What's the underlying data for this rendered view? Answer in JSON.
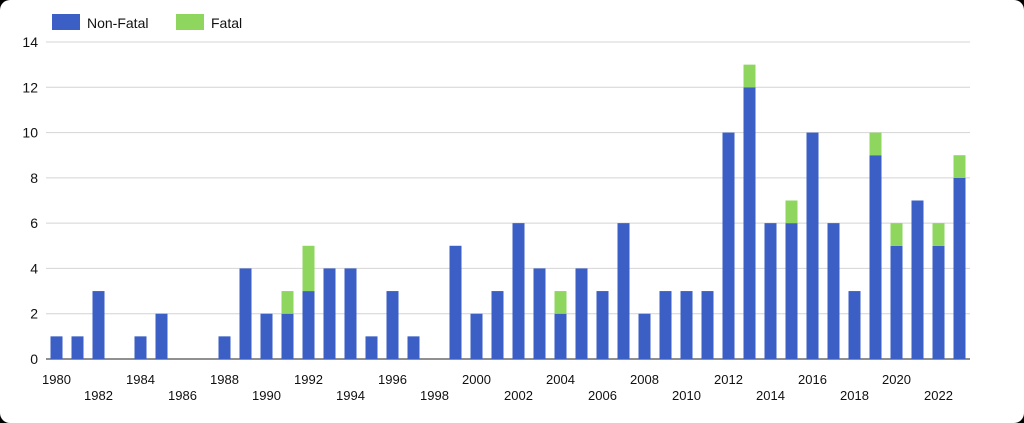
{
  "chart_data": {
    "type": "bar",
    "stacked": true,
    "title": "",
    "xlabel": "",
    "ylabel": "",
    "ylim": [
      0,
      14
    ],
    "yticks": [
      0,
      2,
      4,
      6,
      8,
      10,
      12,
      14
    ],
    "grid": true,
    "legend_position": "top-left",
    "categories": [
      "1980",
      "1981",
      "1982",
      "1983",
      "1984",
      "1985",
      "1986",
      "1987",
      "1988",
      "1989",
      "1990",
      "1991",
      "1992",
      "1993",
      "1994",
      "1995",
      "1996",
      "1997",
      "1998",
      "1999",
      "2000",
      "2001",
      "2002",
      "2003",
      "2004",
      "2005",
      "2006",
      "2007",
      "2008",
      "2009",
      "2010",
      "2011",
      "2012",
      "2013",
      "2014",
      "2015",
      "2016",
      "2017",
      "2018",
      "2019",
      "2020",
      "2021",
      "2022",
      "2023"
    ],
    "x_tick_labels": [
      "1980",
      "1982",
      "1984",
      "1986",
      "1988",
      "1990",
      "1992",
      "1994",
      "1996",
      "1998",
      "2000",
      "2002",
      "2004",
      "2006",
      "2008",
      "2010",
      "2012",
      "2014",
      "2016",
      "2018",
      "2020",
      "2022"
    ],
    "series": [
      {
        "name": "Non-Fatal",
        "color": "#3b5fc4",
        "values": [
          1,
          1,
          3,
          0,
          1,
          2,
          0,
          0,
          1,
          4,
          2,
          2,
          3,
          4,
          4,
          1,
          3,
          1,
          0,
          5,
          2,
          3,
          6,
          4,
          2,
          4,
          3,
          6,
          2,
          3,
          3,
          3,
          10,
          12,
          6,
          6,
          10,
          6,
          3,
          9,
          5,
          7,
          5,
          8
        ]
      },
      {
        "name": "Fatal",
        "color": "#8fd65f",
        "values": [
          0,
          0,
          0,
          0,
          0,
          0,
          0,
          0,
          0,
          0,
          0,
          1,
          2,
          0,
          0,
          0,
          0,
          0,
          0,
          0,
          0,
          0,
          0,
          0,
          1,
          0,
          0,
          0,
          0,
          0,
          0,
          0,
          0,
          1,
          0,
          1,
          0,
          0,
          0,
          1,
          1,
          0,
          1,
          1
        ]
      }
    ]
  }
}
